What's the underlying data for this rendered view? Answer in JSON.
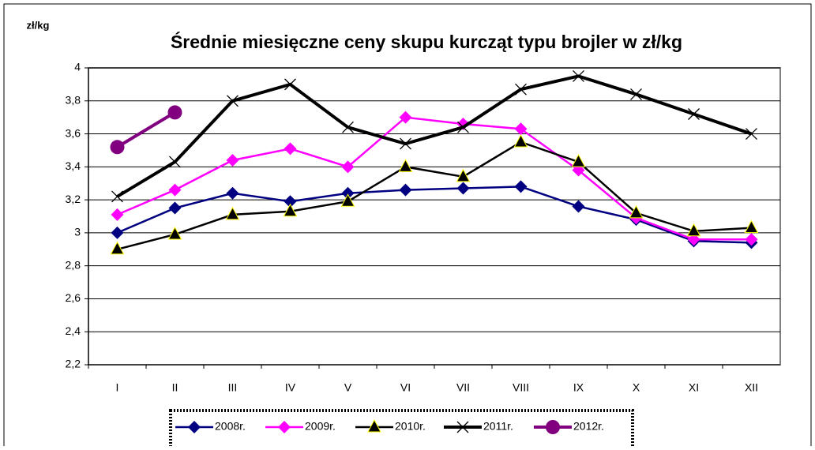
{
  "chart_data": {
    "type": "line",
    "title": "Średnie miesięczne ceny skupu kurcząt typu brojler w zł/kg",
    "y_label": "zł/kg",
    "categories": [
      "I",
      "II",
      "III",
      "IV",
      "V",
      "VI",
      "VII",
      "VIII",
      "IX",
      "X",
      "XI",
      "XII"
    ],
    "ylim": [
      2.2,
      4
    ],
    "yticks": [
      {
        "value": 2.2,
        "label": "2,2"
      },
      {
        "value": 2.4,
        "label": "2,4"
      },
      {
        "value": 2.6,
        "label": "2,6"
      },
      {
        "value": 2.8,
        "label": "2,8"
      },
      3,
      {
        "value": 3.2,
        "label": "3,2"
      },
      {
        "value": 3.4,
        "label": "3,4"
      },
      {
        "value": 3.6,
        "label": "3,6"
      },
      {
        "value": 3.8,
        "label": "3,8"
      },
      4
    ],
    "grid": true,
    "legend": "bottom",
    "series": [
      {
        "name": "2008r.",
        "color": "#000080",
        "marker": "diamond",
        "values": [
          3.0,
          3.15,
          3.24,
          3.19,
          3.24,
          3.26,
          3.27,
          3.28,
          3.16,
          3.08,
          2.95,
          2.94
        ]
      },
      {
        "name": "2009r.",
        "color": "#ff00ff",
        "marker": "diamond",
        "values": [
          3.11,
          3.26,
          3.44,
          3.51,
          3.4,
          3.7,
          3.66,
          3.63,
          3.38,
          3.09,
          2.96,
          2.96
        ]
      },
      {
        "name": "2010r.",
        "color": "#000000",
        "marker": "triangle",
        "values": [
          2.9,
          2.99,
          3.11,
          3.13,
          3.19,
          3.4,
          3.34,
          3.55,
          3.43,
          3.12,
          3.01,
          3.03
        ]
      },
      {
        "name": "2011r.",
        "color": "#000000",
        "marker": "x",
        "values": [
          3.22,
          3.43,
          3.8,
          3.9,
          3.64,
          3.54,
          3.64,
          3.87,
          3.95,
          3.84,
          3.72,
          3.6
        ]
      },
      {
        "name": "2012r.",
        "color": "#800080",
        "marker": "circle",
        "values": [
          3.52,
          3.73,
          null,
          null,
          null,
          null,
          null,
          null,
          null,
          null,
          null,
          null
        ]
      }
    ]
  }
}
